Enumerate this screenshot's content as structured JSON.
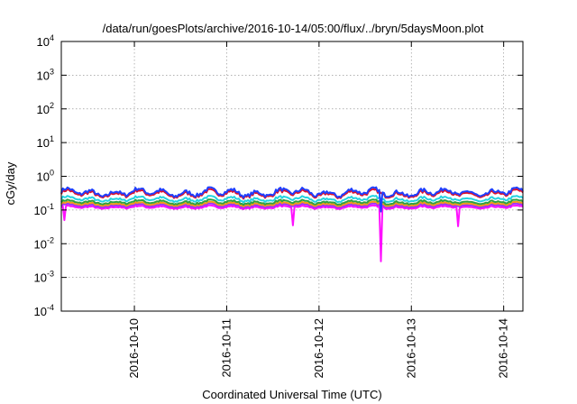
{
  "chart_data": {
    "type": "line",
    "title": "/data/run/goesPlots/archive/2016-10-14/05:00/flux/../bryn/5daysMoon.plot",
    "xlabel": "Coordinated Universal Time (UTC)",
    "ylabel": "cGy/day",
    "yscale": "log",
    "ylim": [
      0.0001,
      10000
    ],
    "y_ticks": [
      {
        "value": 0.0001,
        "base": "10",
        "exp": "-4"
      },
      {
        "value": 0.001,
        "base": "10",
        "exp": "-3"
      },
      {
        "value": 0.01,
        "base": "10",
        "exp": "-2"
      },
      {
        "value": 0.1,
        "base": "10",
        "exp": "-1"
      },
      {
        "value": 1,
        "base": "10",
        "exp": "0"
      },
      {
        "value": 10,
        "base": "10",
        "exp": "1"
      },
      {
        "value": 100,
        "base": "10",
        "exp": "2"
      },
      {
        "value": 1000,
        "base": "10",
        "exp": "3"
      },
      {
        "value": 10000,
        "base": "10",
        "exp": "4"
      }
    ],
    "xlim": [
      "2016-10-09T05:00",
      "2016-10-14T05:00"
    ],
    "x_ticks": [
      "2016-10-10",
      "2016-10-11",
      "2016-10-12",
      "2016-10-13",
      "2016-10-14"
    ],
    "grid": true,
    "legend": "none",
    "series": [
      {
        "color": "#1f3fff",
        "base": 0.33,
        "dips": [
          {
            "x": "2016-10-12T16:00",
            "min": 0.09
          }
        ]
      },
      {
        "color": "#e0102a",
        "base": 0.3,
        "dips": []
      },
      {
        "color": "#23d3e0",
        "base": 0.21,
        "dips": []
      },
      {
        "color": "#2ea043",
        "base": 0.17,
        "dips": []
      },
      {
        "color": "#f39a1a",
        "base": 0.15,
        "dips": []
      },
      {
        "color": "#9b30ff",
        "base": 0.135,
        "dips": []
      },
      {
        "color": "#ff10ff",
        "base": 0.12,
        "dips": [
          {
            "x": "2016-10-09T06:00",
            "min": 0.05
          },
          {
            "x": "2016-10-11T17:00",
            "min": 0.035
          },
          {
            "x": "2016-10-12T16:00",
            "min": 0.003
          },
          {
            "x": "2016-10-13T12:00",
            "min": 0.033
          }
        ]
      }
    ]
  }
}
